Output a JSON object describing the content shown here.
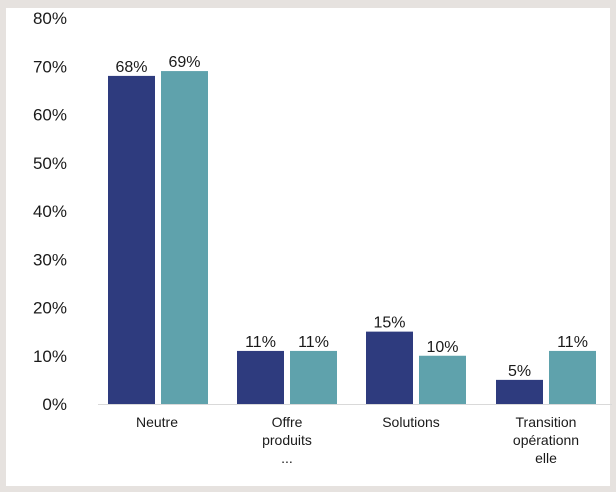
{
  "chart_data": {
    "type": "bar",
    "categories": [
      [
        "Neutre"
      ],
      [
        "Offre",
        "produits",
        "..."
      ],
      [
        "Solutions"
      ],
      [
        "Transition",
        "opérationn",
        "elle"
      ]
    ],
    "series": [
      {
        "values": [
          68,
          11,
          15,
          5
        ],
        "color": "#2e3b7e"
      },
      {
        "values": [
          69,
          11,
          10,
          11
        ],
        "color": "#5fa2ac"
      }
    ],
    "data_labels": [
      [
        "68%",
        "11%",
        "15%",
        "5%"
      ],
      [
        "69%",
        "11%",
        "10%",
        "11%"
      ]
    ],
    "y_ticks": [
      "0%",
      "10%",
      "20%",
      "30%",
      "40%",
      "50%",
      "60%",
      "70%",
      "80%"
    ],
    "ylim": [
      0,
      80
    ],
    "grid": false,
    "legend": "none",
    "title": "",
    "xlabel": "",
    "ylabel": ""
  }
}
